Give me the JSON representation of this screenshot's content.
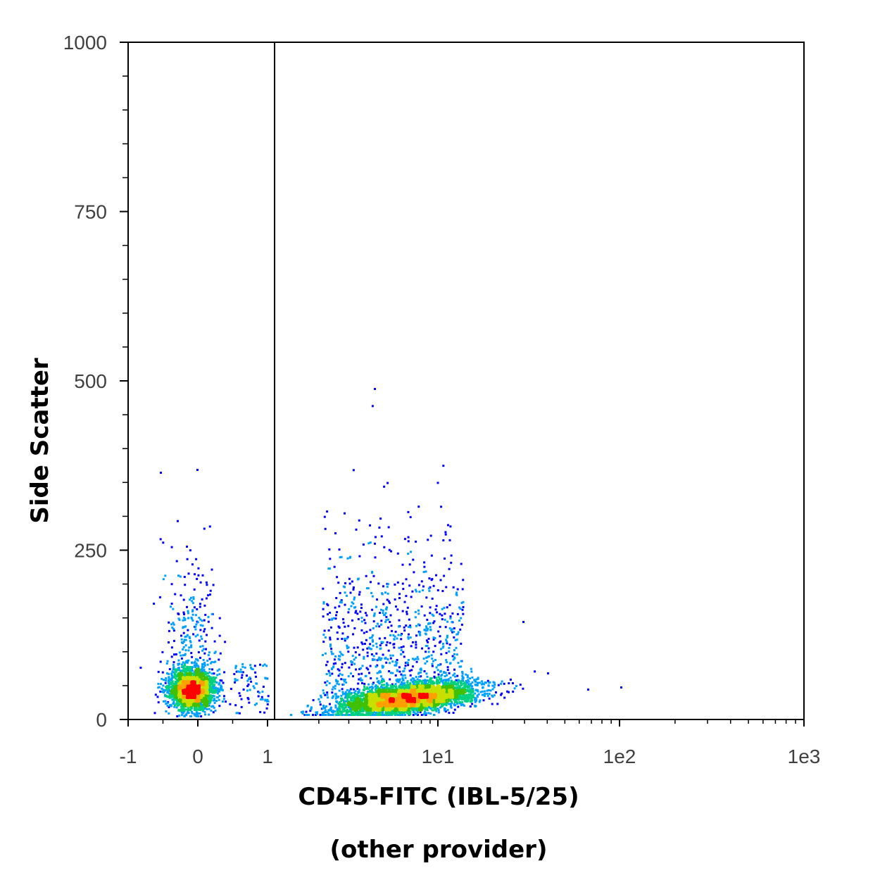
{
  "chart_data": {
    "type": "scatter",
    "title": "",
    "xlabel": "CD45-FITC (IBL-5/25)",
    "xlabel_line2": "(other provider)",
    "ylabel": "Side Scatter",
    "x_scale": "biexponential",
    "xlim": [
      -1,
      1000
    ],
    "ylim": [
      0,
      1000
    ],
    "x_ticks": [
      {
        "value": -1,
        "label": "-1"
      },
      {
        "value": 0,
        "label": "0"
      },
      {
        "value": 1,
        "label": "1"
      },
      {
        "value": 10,
        "label": "1e1"
      },
      {
        "value": 100,
        "label": "1e2"
      },
      {
        "value": 1000,
        "label": "1e3"
      }
    ],
    "y_ticks": [
      {
        "value": 0,
        "label": "0"
      },
      {
        "value": 250,
        "label": "250"
      },
      {
        "value": 500,
        "label": "500"
      },
      {
        "value": 750,
        "label": "750"
      },
      {
        "value": 1000,
        "label": "1000"
      }
    ],
    "gate_x": 1.1,
    "grid": false,
    "populations": [
      {
        "name": "",
        "x_center": -0.1,
        "y_center": 45,
        "count": 2600
      },
      {
        "name": "",
        "x_center": 6.5,
        "y_center": 32,
        "count": 5200
      }
    ],
    "colormap": [
      "#0000ff",
      "#00a0ff",
      "#00d080",
      "#40c000",
      "#c8e000",
      "#ffa000",
      "#ff0000"
    ]
  }
}
